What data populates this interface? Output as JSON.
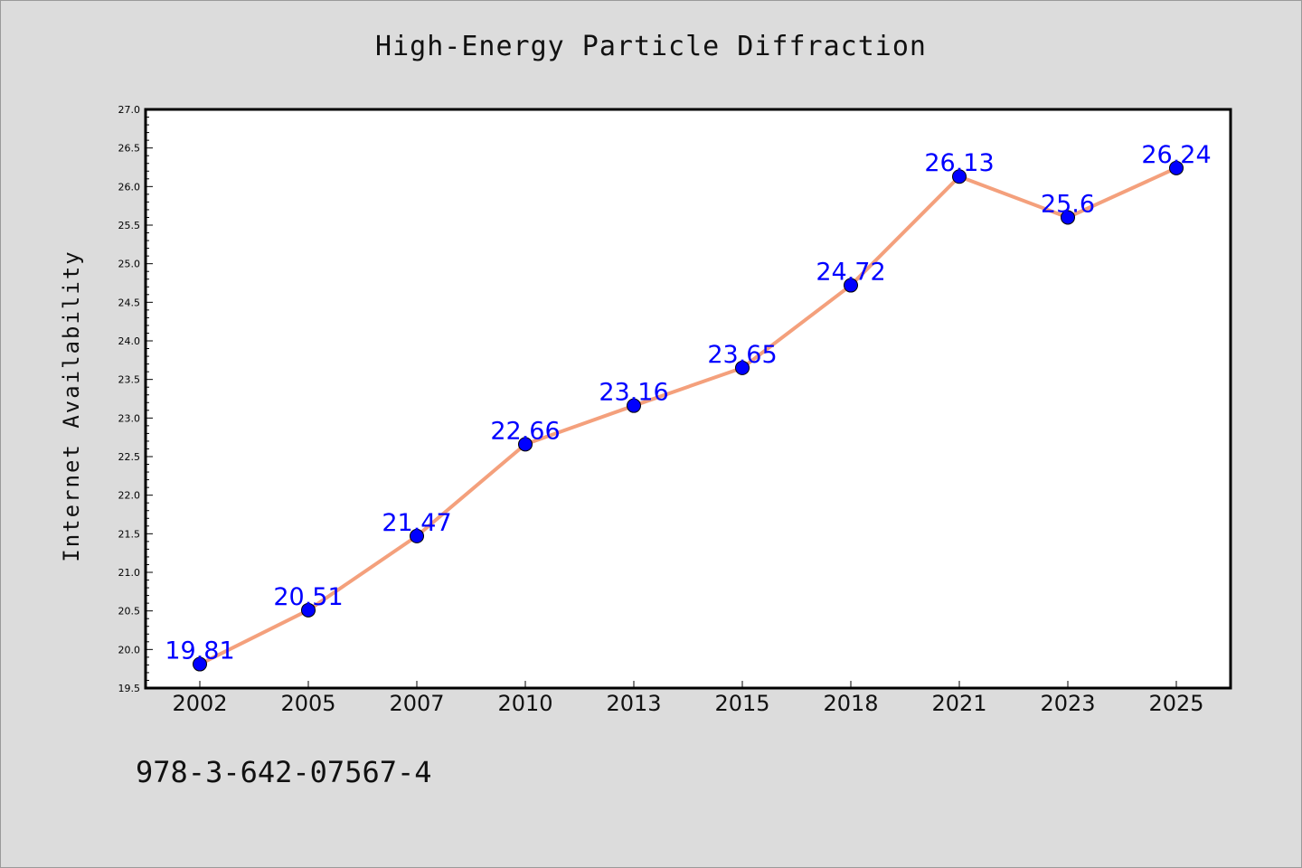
{
  "chart_data": {
    "type": "line",
    "title": "High-Energy Particle Diffraction",
    "xlabel": "",
    "ylabel": "Internet Availability",
    "categories": [
      "2002",
      "2005",
      "2007",
      "2010",
      "2013",
      "2015",
      "2018",
      "2021",
      "2023",
      "2025"
    ],
    "series": [
      {
        "values": [
          19.81,
          20.51,
          21.47,
          22.66,
          23.16,
          23.65,
          24.72,
          26.13,
          25.6,
          26.24
        ],
        "data_labels": [
          "19.81",
          "20.51",
          "21.47",
          "22.66",
          "23.16",
          "23.65",
          "24.72",
          "26.13",
          "25.6",
          "26.24"
        ]
      }
    ],
    "ylim": [
      19.5,
      27.0
    ],
    "yticks": [
      "19.5",
      "20.0",
      "20.5",
      "21.0",
      "21.5",
      "22.0",
      "22.5",
      "23.0",
      "23.5",
      "24.0",
      "24.5",
      "25.0",
      "25.5",
      "26.0",
      "26.5",
      "27.0"
    ],
    "grid": false,
    "legend": "none",
    "colors": {
      "line": "#f4a07c",
      "marker": "#0000ff",
      "label": "#0000ff",
      "plot_bg": "#ffffff",
      "page_bg": "#dcdcdc"
    }
  },
  "footer": {
    "isbn": "978-3-642-07567-4"
  }
}
